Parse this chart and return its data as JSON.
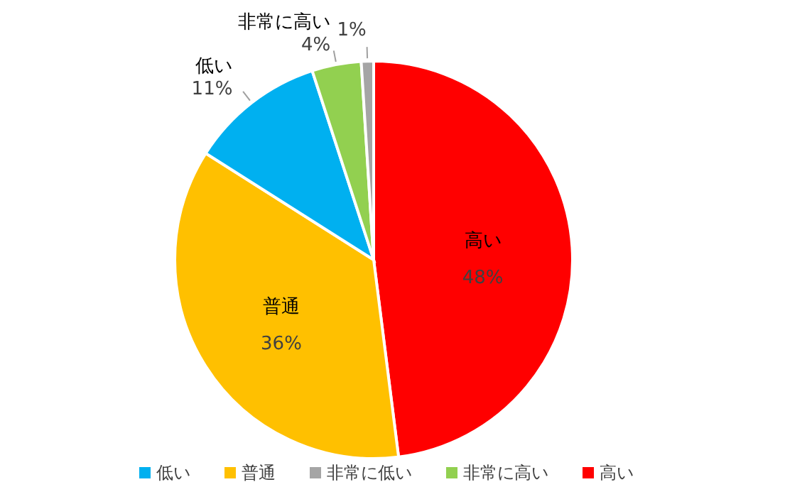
{
  "chart_data": {
    "type": "pie",
    "categories": [
      "高い",
      "普通",
      "低い",
      "非常に高い",
      "非常に低い"
    ],
    "values": [
      48,
      36,
      11,
      4,
      1
    ],
    "colors": [
      "#ff0000",
      "#ffc000",
      "#00b0f0",
      "#92d050",
      "#a5a5a5"
    ],
    "value_labels": [
      "高い 48%",
      "普通 36%",
      "低い 11%",
      "非常に高い 4%",
      "1%"
    ],
    "legend": "bottom"
  }
}
